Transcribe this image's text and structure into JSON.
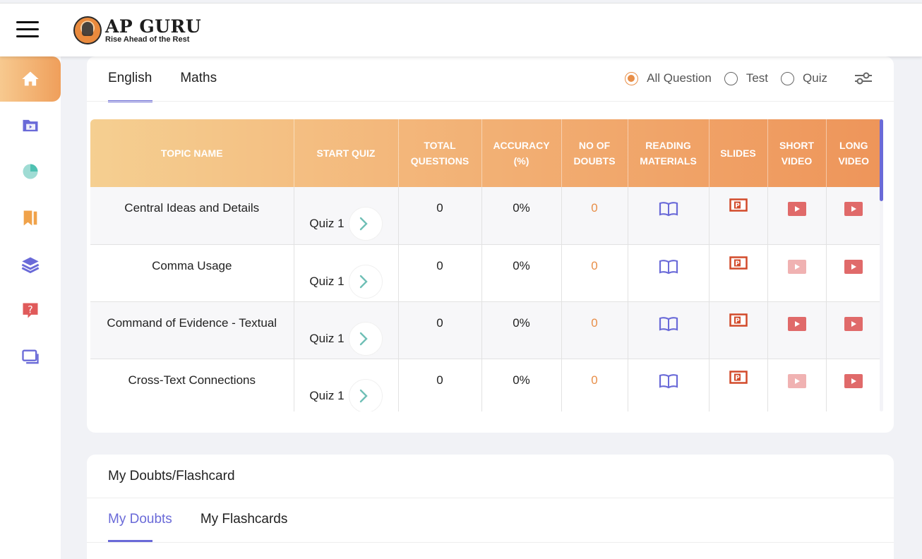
{
  "brand": {
    "title": "AP GURU",
    "tagline": "Rise Ahead of the Rest"
  },
  "sidebar": {
    "items": [
      {
        "name": "home-icon",
        "active": true
      },
      {
        "name": "video-folder-icon"
      },
      {
        "name": "pie-chart-icon"
      },
      {
        "name": "bookmark-icon"
      },
      {
        "name": "layers-icon"
      },
      {
        "name": "question-chat-icon"
      },
      {
        "name": "windows-icon"
      }
    ]
  },
  "subjects": {
    "tabs": [
      "English",
      "Maths"
    ],
    "active": "English"
  },
  "filters": {
    "options": [
      "All Question",
      "Test",
      "Quiz"
    ],
    "selected": "All Question",
    "settings_icon": "sliders-icon"
  },
  "table": {
    "headers": [
      "TOPIC NAME",
      "START QUIZ",
      "TOTAL QUESTIONS",
      "ACCURACY (%)",
      "NO OF DOUBTS",
      "READING MATERIALS",
      "SLIDES",
      "SHORT VIDEO",
      "LONG VIDEO"
    ],
    "rows": [
      {
        "topic": "Central Ideas and Details",
        "quiz": "Quiz 1",
        "total": "0",
        "accuracy": "0%",
        "doubts": "0",
        "short_video_enabled": true
      },
      {
        "topic": "Comma Usage",
        "quiz": "Quiz 1",
        "total": "0",
        "accuracy": "0%",
        "doubts": "0",
        "short_video_enabled": false
      },
      {
        "topic": "Command of Evidence - Textual",
        "quiz": "Quiz 1",
        "total": "0",
        "accuracy": "0%",
        "doubts": "0",
        "short_video_enabled": true
      },
      {
        "topic": "Cross-Text Connections",
        "quiz": "Quiz 1",
        "total": "0",
        "accuracy": "0%",
        "doubts": "0",
        "short_video_enabled": false
      }
    ]
  },
  "doubts": {
    "title": "My Doubts/Flashcard",
    "tabs": [
      "My Doubts",
      "My Flashcards"
    ],
    "active": "My Doubts"
  },
  "colors": {
    "accent": "#6a6ad8",
    "orange": "#e88e48",
    "slides": "#d24a2a",
    "video": "#e06a6a",
    "video_disabled": "#f0b2b2"
  }
}
